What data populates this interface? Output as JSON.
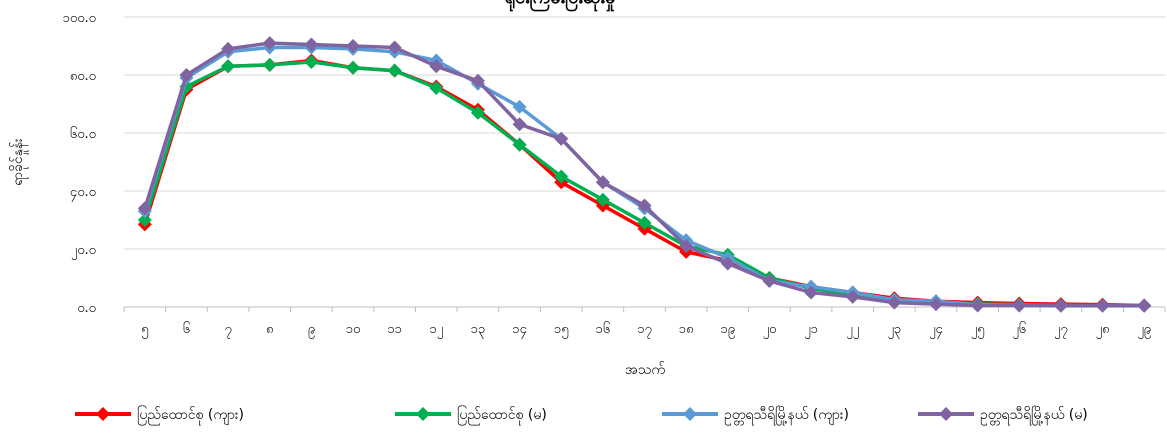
{
  "chart_data": {
    "type": "line",
    "title": "ရိုင်းကြမ်းပြီးဆုံးမှု",
    "xlabel": "အသက်",
    "ylabel": "ရာခိုင်နှုန်း",
    "ylim": [
      0,
      100
    ],
    "grid": "horizontal",
    "legend_position": "bottom",
    "y_ticks": [
      "၀.၀",
      "၂၀.၀",
      "၄၀.၀",
      "၆၀.၀",
      "၈၀.၀",
      "၁၀၀.၀"
    ],
    "categories": [
      "၅",
      "၆",
      "၇",
      "၈",
      "၉",
      "၁၀",
      "၁၁",
      "၁၂",
      "၁၃",
      "၁၄",
      "၁၅",
      "၁၆",
      "၁၇",
      "၁၈",
      "၁၉",
      "၂၀",
      "၂၁",
      "၂၂",
      "၂၃",
      "၂၄",
      "၂၅",
      "၂၆",
      "၂၇",
      "၂၈",
      "၂၉"
    ],
    "series": [
      {
        "name": "ပြည်ထောင်စု (ကျား)",
        "color": "#ff0000",
        "values": [
          28.5,
          75,
          83,
          83.5,
          85,
          82.5,
          81.5,
          76,
          68,
          56,
          43,
          35,
          27,
          19,
          16,
          10,
          7,
          5,
          3,
          2,
          1.5,
          1.2,
          1.0,
          0.8,
          0.5
        ]
      },
      {
        "name": "ပြည်ထောင်စု (မ)",
        "color": "#00b050",
        "values": [
          30,
          76,
          83,
          83.5,
          84.5,
          82.5,
          81.5,
          75.5,
          67,
          56,
          45,
          37,
          29,
          21,
          18,
          10,
          6.5,
          4,
          2.5,
          1.5,
          1,
          0.8,
          0.6,
          0.5,
          0.5
        ]
      },
      {
        "name": "ဥတ္တရသီရိမြို့နယ် (ကျား)",
        "color": "#5b9bd5",
        "values": [
          33,
          79,
          88,
          89.5,
          89.5,
          89,
          88,
          85,
          77,
          69,
          58,
          43,
          34,
          23,
          17,
          9,
          7,
          5,
          2.5,
          2,
          0.8,
          0.5,
          0.4,
          0.4,
          0.4
        ]
      },
      {
        "name": "ဥတ္တရသီရိမြို့နယ် (မ)",
        "color": "#8064a2",
        "values": [
          34,
          80,
          89,
          91,
          90.5,
          90,
          89.5,
          83,
          78,
          63,
          58,
          43,
          35,
          21,
          15,
          9,
          5,
          3.5,
          1.5,
          1,
          0.5,
          0.5,
          0.5,
          0.5,
          0.5
        ]
      }
    ]
  }
}
